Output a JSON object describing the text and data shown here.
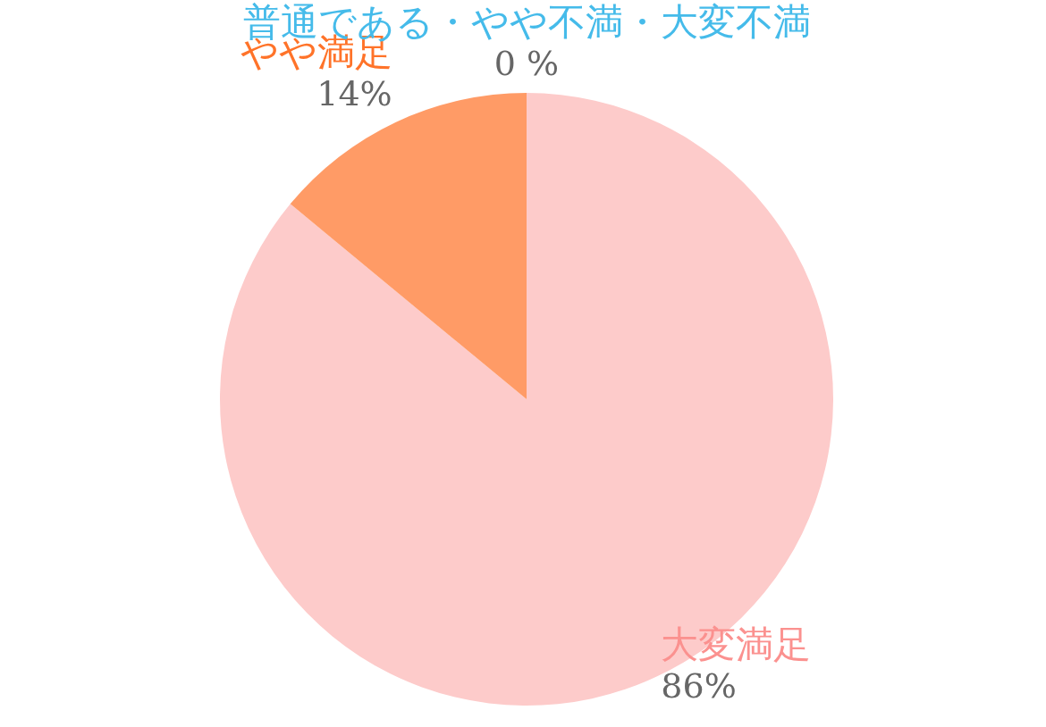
{
  "chart_data": {
    "type": "pie",
    "categories": [
      "大変満足",
      "やや満足",
      "普通である・やや不満・大変不満"
    ],
    "values": [
      86,
      14,
      0
    ],
    "colors": [
      "#fdcbca",
      "#ff9b66",
      "#7ccff0"
    ],
    "value_labels": [
      "86%",
      "14%",
      "0 %"
    ],
    "legend": false
  }
}
